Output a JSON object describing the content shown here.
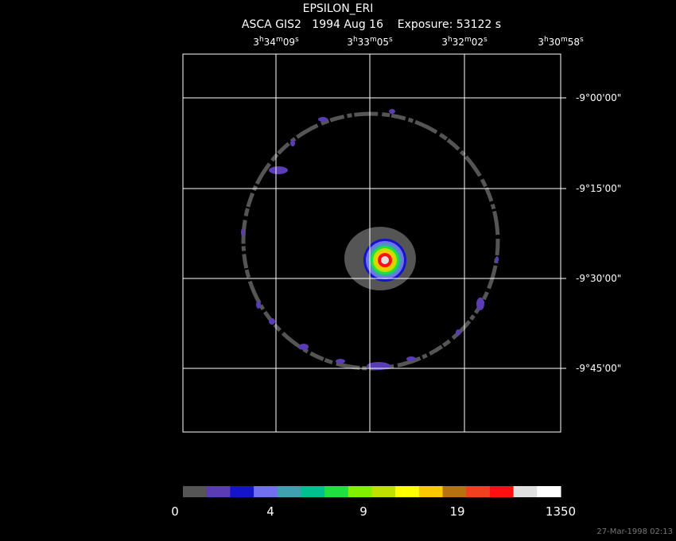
{
  "header": {
    "object": "EPSILON_ERI",
    "line2": "ASCA GIS2   1994 Aug 16    Exposure: 53122 s"
  },
  "ra_labels": [
    [
      "3",
      "h",
      "34",
      "m",
      "09",
      "s"
    ],
    [
      "3",
      "h",
      "33",
      "m",
      "05",
      "s"
    ],
    [
      "3",
      "h",
      "32",
      "m",
      "02",
      "s"
    ],
    [
      "3",
      "h",
      "30",
      "m",
      "58",
      "s"
    ]
  ],
  "dec_labels": [
    "-9°00'00\"",
    "-9°15'00\"",
    "-9°30'00\"",
    "-9°45'00\""
  ],
  "colorbar": {
    "colors": [
      "#555555",
      "#5a3cb4",
      "#1414c8",
      "#7070f0",
      "#40a0b0",
      "#00c090",
      "#20e040",
      "#80f000",
      "#c0e000",
      "#ffff00",
      "#ffc800",
      "#b87010",
      "#f04020",
      "#ff1010",
      "#e0e0e0",
      "#ffffff"
    ],
    "labels": [
      "0",
      "4",
      "9",
      "19",
      "1350"
    ]
  },
  "timestamp": "27-Mar-1998 02:13"
}
